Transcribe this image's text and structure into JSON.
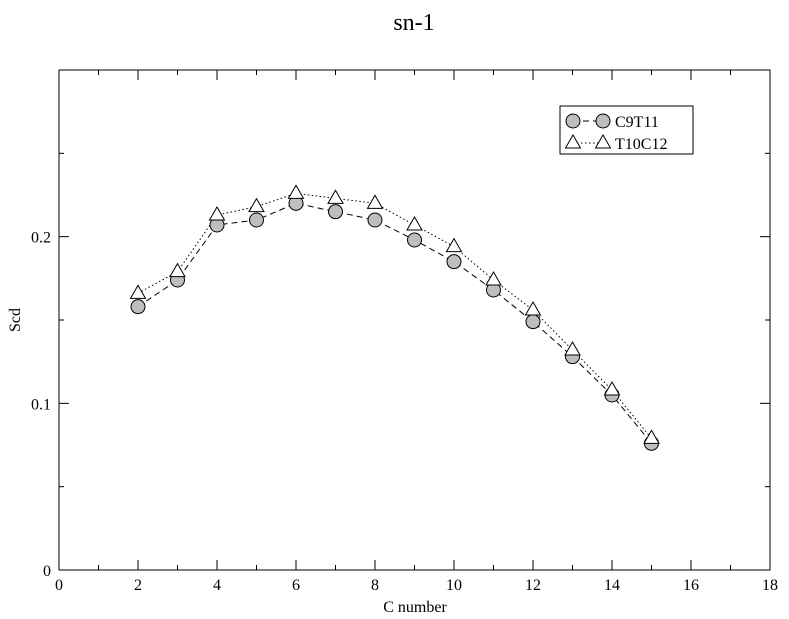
{
  "chart_data": {
    "type": "line",
    "title": "sn-1",
    "xlabel": "C number",
    "ylabel": "Scd",
    "xlim": [
      0,
      18
    ],
    "ylim": [
      0,
      0.3
    ],
    "x_major_ticks": [
      0,
      2,
      4,
      6,
      8,
      10,
      12,
      14,
      16,
      18
    ],
    "x_tick_labels": [
      "0",
      "2",
      "4",
      "6",
      "8",
      "10",
      "12",
      "14",
      "16",
      "18"
    ],
    "y_major_ticks": [
      0,
      0.1,
      0.2
    ],
    "y_tick_labels": [
      "0",
      "0.1",
      "0.2"
    ],
    "grid": false,
    "legend_position": "top-right",
    "series": [
      {
        "name": "C9T11",
        "marker": "circle",
        "line_style": "dashed",
        "marker_fill": "#bebebe",
        "x": [
          2,
          3,
          4,
          5,
          6,
          7,
          8,
          9,
          10,
          11,
          12,
          13,
          14,
          15
        ],
        "values": [
          0.158,
          0.174,
          0.207,
          0.21,
          0.22,
          0.215,
          0.21,
          0.198,
          0.185,
          0.168,
          0.149,
          0.128,
          0.105,
          0.076
        ]
      },
      {
        "name": "T10C12",
        "marker": "triangle",
        "line_style": "dotted",
        "marker_fill": "#ffffff",
        "x": [
          2,
          3,
          4,
          5,
          6,
          7,
          8,
          9,
          10,
          11,
          12,
          13,
          14,
          15
        ],
        "values": [
          0.166,
          0.179,
          0.213,
          0.218,
          0.226,
          0.223,
          0.22,
          0.207,
          0.194,
          0.174,
          0.156,
          0.132,
          0.108,
          0.079
        ]
      }
    ]
  }
}
